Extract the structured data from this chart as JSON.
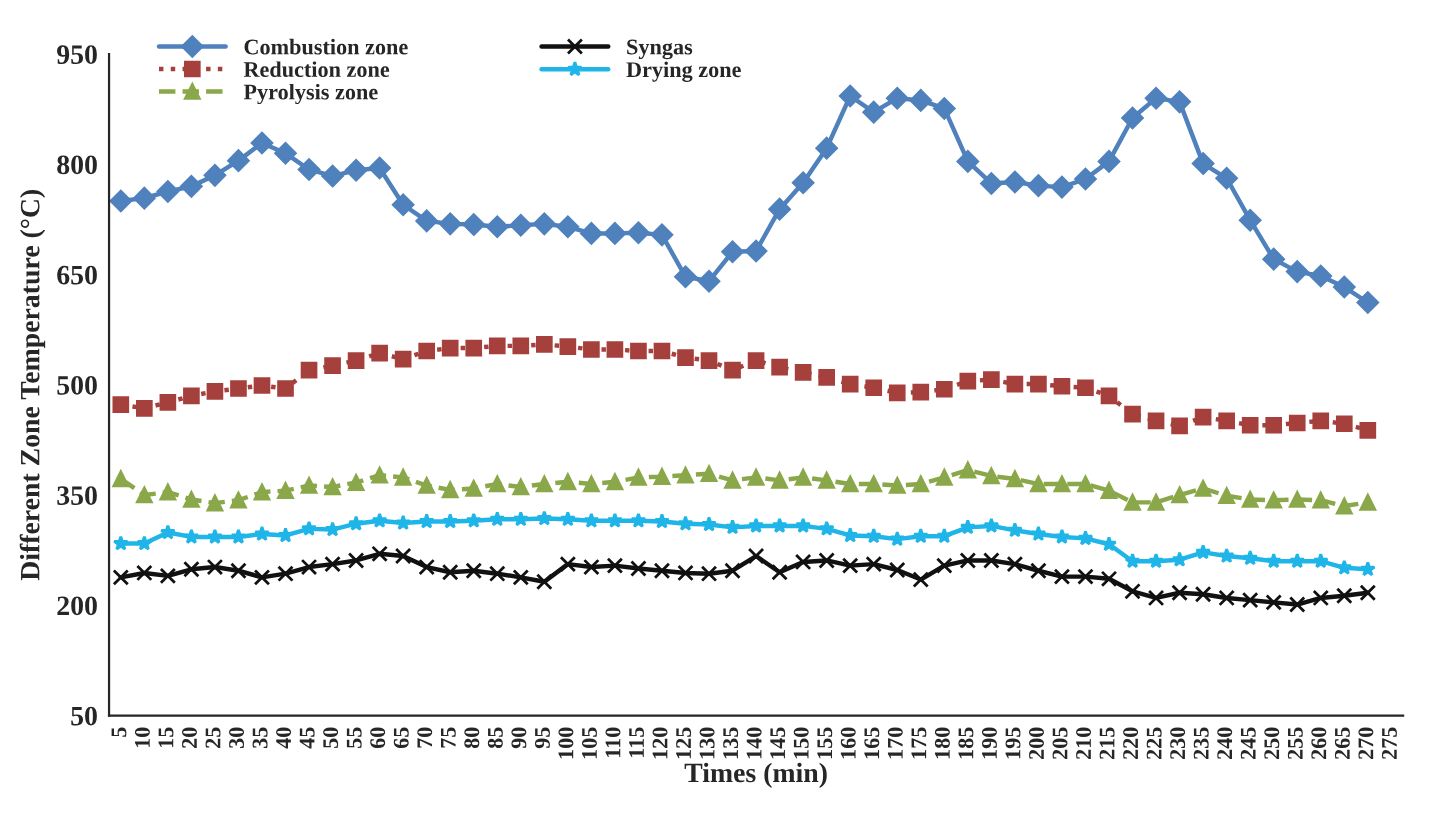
{
  "chart_data": {
    "type": "line",
    "xlabel": "Times (min)",
    "ylabel": "Different Zone Temperature (°C)",
    "categories": [
      "5",
      "10",
      "15",
      "20",
      "25",
      "30",
      "35",
      "40",
      "45",
      "50",
      "55",
      "60",
      "65",
      "70",
      "75",
      "80",
      "85",
      "90",
      "95",
      "100",
      "105",
      "110",
      "115",
      "120",
      "125",
      "130",
      "135",
      "140",
      "145",
      "150",
      "155",
      "160",
      "165",
      "170",
      "175",
      "180",
      "185",
      "190",
      "195",
      "200",
      "205",
      "210",
      "215",
      "220",
      "225",
      "230",
      "235",
      "240",
      "245",
      "250",
      "255",
      "260",
      "265",
      "270",
      "275"
    ],
    "ylim": [
      50,
      950
    ],
    "yticks": [
      50,
      200,
      350,
      500,
      650,
      800,
      950
    ],
    "grid": false,
    "legend": "top left",
    "series": [
      {
        "name": "Combustion zone",
        "color": "#4f81bd",
        "marker": "diamond",
        "line_style": "solid",
        "values": [
          750,
          754,
          763,
          770,
          785,
          805,
          829,
          815,
          793,
          784,
          792,
          795,
          745,
          723,
          719,
          718,
          715,
          717,
          719,
          715,
          706,
          706,
          707,
          704,
          647,
          641,
          681,
          682,
          739,
          775,
          822,
          893,
          871,
          890,
          887,
          876,
          804,
          774,
          776,
          771,
          769,
          780,
          804,
          863,
          890,
          885,
          801,
          781,
          724,
          671,
          654,
          648,
          633,
          612,
          null
        ]
      },
      {
        "name": "Reduction zone",
        "color": "#a5403c",
        "marker": "square",
        "line_style": "dotted",
        "values": [
          473,
          468,
          476,
          485,
          491,
          495,
          499,
          495,
          520,
          526,
          533,
          543,
          535,
          546,
          550,
          550,
          553,
          553,
          555,
          552,
          548,
          548,
          546,
          546,
          537,
          533,
          520,
          533,
          524,
          517,
          510,
          501,
          496,
          489,
          490,
          494,
          505,
          507,
          501,
          501,
          498,
          496,
          485,
          460,
          451,
          444,
          456,
          451,
          445,
          445,
          448,
          451,
          447,
          438,
          null
        ]
      },
      {
        "name": "Pyrolysis zone",
        "color": "#8aa84a",
        "marker": "triangle",
        "line_style": "dashed",
        "values": [
          372,
          350,
          354,
          344,
          339,
          343,
          354,
          356,
          363,
          361,
          367,
          377,
          374,
          363,
          357,
          359,
          365,
          361,
          365,
          368,
          365,
          368,
          374,
          375,
          377,
          379,
          370,
          374,
          370,
          374,
          370,
          365,
          365,
          363,
          365,
          374,
          384,
          376,
          372,
          365,
          365,
          365,
          356,
          340,
          340,
          350,
          359,
          349,
          344,
          343,
          344,
          343,
          335,
          340,
          null
        ]
      },
      {
        "name": "Syngas",
        "color": "#111111",
        "marker": "cross",
        "line_style": "solid",
        "values": [
          238,
          244,
          240,
          249,
          252,
          247,
          238,
          243,
          252,
          256,
          261,
          270,
          267,
          252,
          245,
          247,
          243,
          238,
          232,
          256,
          252,
          254,
          250,
          247,
          244,
          243,
          247,
          267,
          245,
          259,
          261,
          254,
          256,
          248,
          235,
          254,
          261,
          261,
          256,
          247,
          239,
          239,
          236,
          219,
          210,
          217,
          215,
          210,
          207,
          204,
          201,
          210,
          213,
          217,
          null
        ]
      },
      {
        "name": "Drying zone",
        "color": "#1fb5e8",
        "marker": "star",
        "line_style": "solid",
        "values": [
          284,
          284,
          299,
          293,
          293,
          293,
          297,
          295,
          304,
          303,
          311,
          315,
          312,
          314,
          314,
          315,
          317,
          317,
          318,
          317,
          315,
          315,
          315,
          314,
          311,
          310,
          306,
          308,
          308,
          308,
          304,
          295,
          294,
          290,
          294,
          294,
          306,
          308,
          302,
          297,
          293,
          291,
          283,
          260,
          260,
          262,
          272,
          267,
          264,
          260,
          260,
          260,
          251,
          249,
          null
        ]
      }
    ]
  }
}
